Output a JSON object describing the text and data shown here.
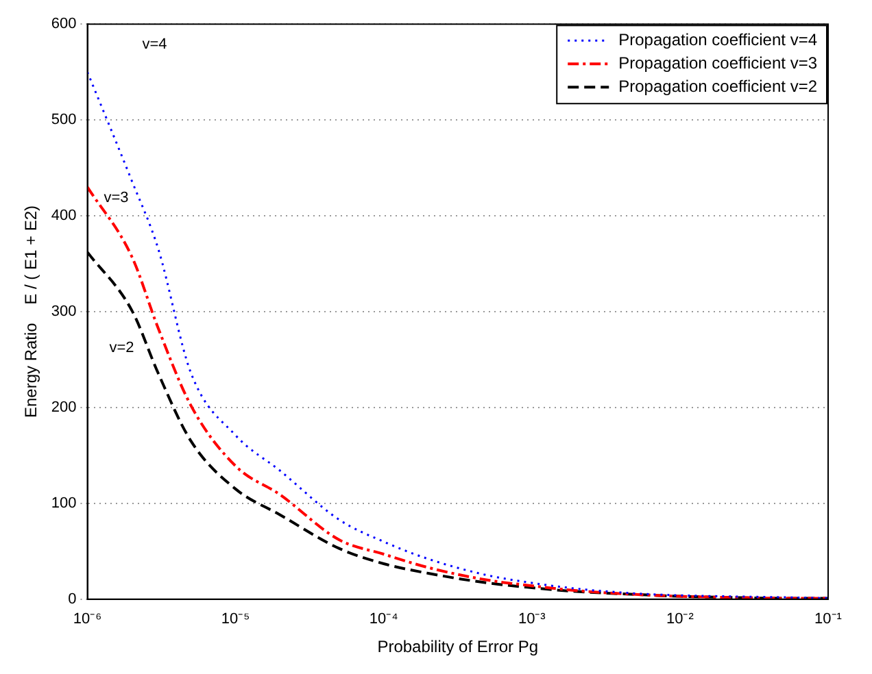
{
  "chart_data": {
    "type": "line",
    "xlabel": "Probability of Error Pg",
    "ylabel": "Energy Ratio    E / ( E1 + E2)",
    "x": [
      1e-06,
      2e-06,
      3e-06,
      5e-06,
      1e-05,
      2e-05,
      5e-05,
      0.0001,
      0.0002,
      0.0005,
      0.001,
      0.002,
      0.005,
      0.01,
      0.02,
      0.05,
      0.1
    ],
    "series": [
      {
        "name": "Propagation coefficient v=4",
        "color": "#0000ff",
        "line_style": "dotted",
        "values": [
          550,
          436,
          366,
          236,
          171,
          134,
          83,
          60,
          42,
          25,
          17,
          11,
          6,
          4,
          3,
          2,
          1
        ]
      },
      {
        "name": "Propagation coefficient v=3",
        "color": "#ff0000",
        "line_style": "dashdot",
        "values": [
          430,
          357,
          283,
          202,
          139,
          109,
          62,
          47,
          33,
          20,
          14,
          9,
          5,
          3,
          2,
          1,
          1
        ]
      },
      {
        "name": "Propagation coefficient v=2",
        "color": "#000000",
        "line_style": "dashed",
        "values": [
          362,
          301,
          236,
          165,
          115,
          88,
          53,
          37,
          27,
          17,
          12,
          8,
          5,
          3,
          2,
          1,
          1
        ]
      }
    ],
    "log": "x",
    "xlim": [
      1e-06,
      0.1
    ],
    "ylim": [
      0,
      600
    ],
    "xticks": [
      {
        "value": 1e-06,
        "label": "10⁻⁶"
      },
      {
        "value": 1e-05,
        "label": "10⁻⁵"
      },
      {
        "value": 0.0001,
        "label": "10⁻⁴"
      },
      {
        "value": 0.001,
        "label": "10⁻³"
      },
      {
        "value": 0.01,
        "label": "10⁻²"
      },
      {
        "value": 0.1,
        "label": "10⁻¹"
      }
    ],
    "yticks": [
      0,
      100,
      200,
      300,
      400,
      500,
      600
    ],
    "grid": "y",
    "legend": "top right",
    "marker": "none",
    "annotations": [
      "v=4",
      "v=3",
      "v=2"
    ]
  }
}
